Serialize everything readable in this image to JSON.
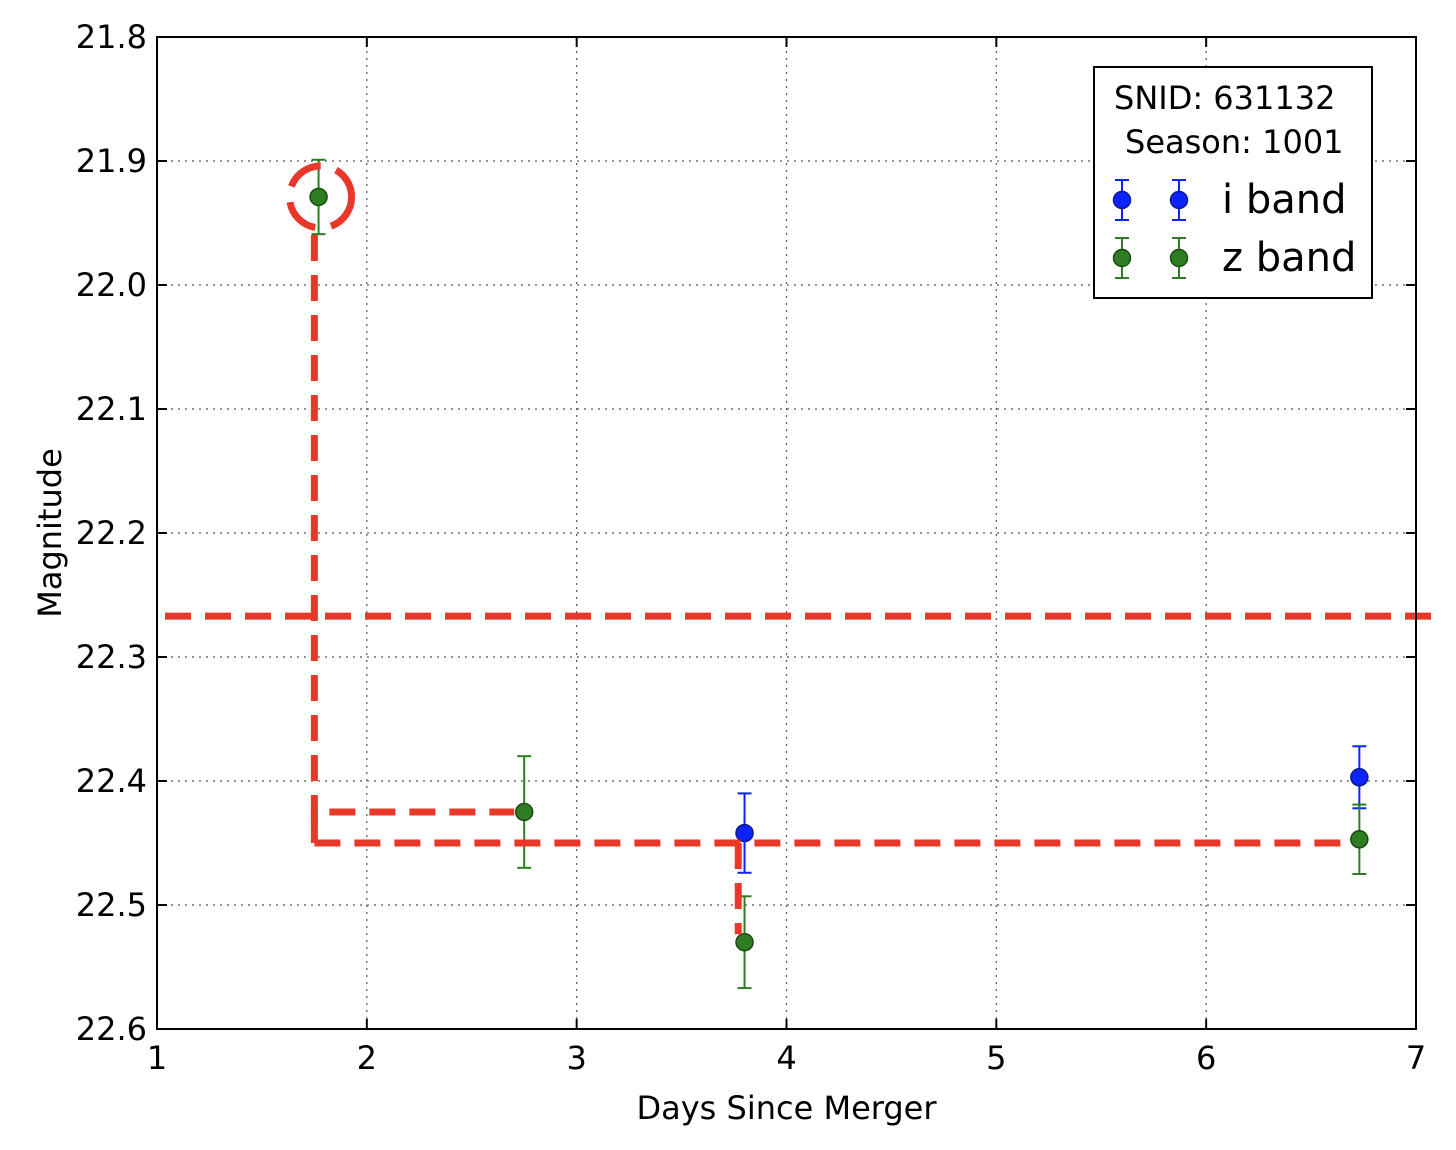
{
  "chart_data": {
    "type": "scatter",
    "xlabel": "Days Since Merger",
    "ylabel": "Magnitude",
    "xlim": [
      1,
      7
    ],
    "ylim": [
      21.8,
      22.6
    ],
    "y_inverted": true,
    "grid": true,
    "x_ticks": [
      "1",
      "2",
      "3",
      "4",
      "5",
      "6",
      "7"
    ],
    "y_ticks": [
      "21.8",
      "21.9",
      "22.0",
      "22.1",
      "22.2",
      "22.3",
      "22.4",
      "22.5",
      "22.6"
    ],
    "legend": {
      "placement": "top-right",
      "title_lines": [
        "SNID: 631132",
        "Season: 1001"
      ]
    },
    "series": [
      {
        "name": "i band",
        "color": "#0b24fb",
        "points": [
          {
            "x": 3.8,
            "y": 22.442,
            "err": 0.032
          },
          {
            "x": 6.73,
            "y": 22.397,
            "err": 0.025
          }
        ]
      },
      {
        "name": "z band",
        "color": "#2e7d22",
        "points": [
          {
            "x": 1.77,
            "y": 21.929,
            "err": 0.03
          },
          {
            "x": 2.75,
            "y": 22.425,
            "err": 0.045
          },
          {
            "x": 3.8,
            "y": 22.53,
            "err": 0.037
          },
          {
            "x": 6.73,
            "y": 22.447,
            "err": 0.028
          }
        ]
      }
    ],
    "annotations": {
      "color": "#e8382a",
      "circle_at": {
        "x": 1.77,
        "y": 21.929
      },
      "horizontal_dashed_y": [
        22.267,
        22.45
      ],
      "vertical_dashed_x": [
        1.75,
        3.77
      ]
    }
  }
}
